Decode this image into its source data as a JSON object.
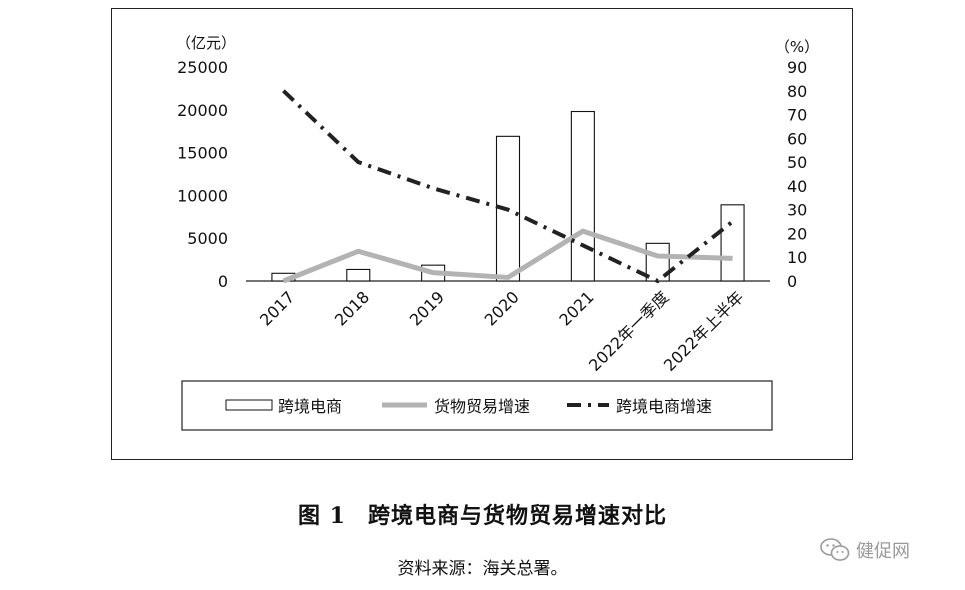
{
  "chart_data": {
    "type": "bar",
    "categories": [
      "2017",
      "2018",
      "2019",
      "2020",
      "2021",
      "2022年一季度",
      "2022年上半年"
    ],
    "left_axis_unit": "（亿元）",
    "right_axis_unit": "（%）",
    "ylim_left": [
      0,
      25000
    ],
    "yticks_left": [
      "0",
      "5000",
      "10000",
      "15000",
      "20000",
      "25000"
    ],
    "ylim_right": [
      0,
      90
    ],
    "yticks_right": [
      "0",
      "10",
      "20",
      "30",
      "40",
      "50",
      "60",
      "70",
      "80",
      "90"
    ],
    "series": [
      {
        "name": "跨境电商",
        "type": "bar",
        "axis": "left",
        "values": [
          900,
          1350,
          1850,
          16900,
          19800,
          4400,
          8900
        ]
      },
      {
        "name": "货物贸易增速",
        "type": "line",
        "axis": "right",
        "values": [
          0,
          12.5,
          3.5,
          1.5,
          21,
          10.5,
          9.5
        ]
      },
      {
        "name": "跨境电商增速",
        "type": "line",
        "axis": "right",
        "values": [
          80,
          50,
          39,
          30,
          15,
          0,
          25
        ]
      }
    ],
    "legend_position": "bottom",
    "grid": false
  },
  "caption": {
    "figure_no": "图 1",
    "title": "跨境电商与货物贸易增速对比"
  },
  "source": "资料来源：海关总署。",
  "watermark": "健促网",
  "colors": {
    "bar_stroke": "#111111",
    "growth_trade": "#b3b3b3",
    "growth_ec": "#222222"
  }
}
